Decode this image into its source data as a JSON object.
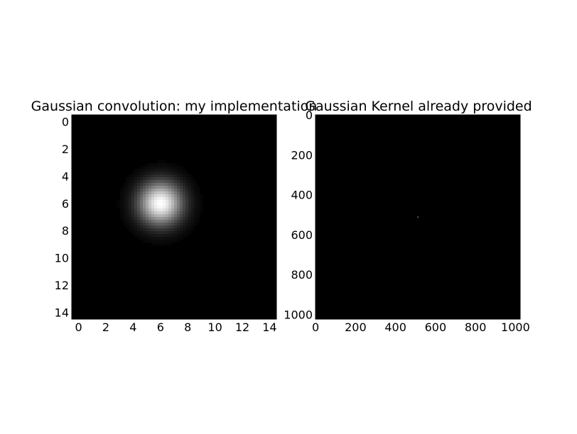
{
  "chart_data": [
    {
      "type": "heatmap",
      "title": "Gaussian convolution: my implementation",
      "xlabel": "",
      "ylabel": "",
      "shape": [
        15,
        15
      ],
      "colormap": "gray",
      "background_value": 0,
      "peak": {
        "x": 6,
        "y": 6,
        "value": 1
      },
      "sigma": 1.1,
      "xlim": [
        -0.5,
        14.5
      ],
      "ylim": [
        14.5,
        -0.5
      ],
      "xticks": [
        0,
        2,
        4,
        6,
        8,
        10,
        12,
        14
      ],
      "yticks": [
        0,
        2,
        4,
        6,
        8,
        10,
        12,
        14
      ],
      "grid": false
    },
    {
      "type": "heatmap",
      "title": "Gaussian Kernel already provided",
      "xlabel": "",
      "ylabel": "",
      "shape": [
        1024,
        1024
      ],
      "colormap": "gray",
      "background_value": 0,
      "peak": {
        "x": 512,
        "y": 512,
        "value": 0.35
      },
      "xlim": [
        -0.5,
        1023.5
      ],
      "ylim": [
        1023.5,
        -0.5
      ],
      "xticks": [
        0,
        200,
        400,
        600,
        800,
        1000
      ],
      "yticks": [
        0,
        200,
        400,
        600,
        800,
        1000
      ],
      "grid": false
    }
  ]
}
